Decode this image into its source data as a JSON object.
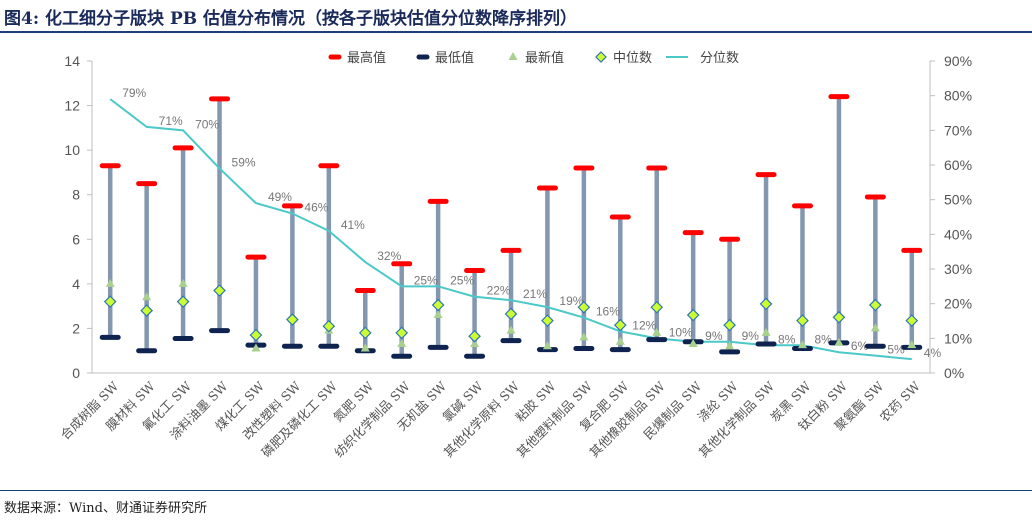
{
  "figure": {
    "title": "图4: 化工细分子版块 PB 估值分布情况（按各子版块估值分位数降序排列）",
    "source": "数据来源：Wind、财通证券研究所"
  },
  "chart_data": {
    "type": "line",
    "categories": [
      "合成树脂 SW",
      "膜材料 SW",
      "氟化工 SW",
      "涂料油墨 SW",
      "煤化工 SW",
      "改性塑料 SW",
      "磷肥及磷化工 SW",
      "氮肥 SW",
      "纺织化学制品 SW",
      "无机盐 SW",
      "氯碱 SW",
      "其他化学原料 SW",
      "粘胶 SW",
      "其他塑料制品 SW",
      "复合肥 SW",
      "其他橡胶制品 SW",
      "民爆制品 SW",
      "涤纶 SW",
      "其他化学制品 SW",
      "炭黑 SW",
      "钛白粉 SW",
      "聚氨酯 SW",
      "农药 SW"
    ],
    "y_left": {
      "min": 0,
      "max": 14,
      "ticks": [
        "0",
        "2",
        "4",
        "6",
        "8",
        "10",
        "12",
        "14"
      ]
    },
    "y_right": {
      "min": 0,
      "max": 90,
      "ticks": [
        "0%",
        "10%",
        "20%",
        "30%",
        "40%",
        "50%",
        "60%",
        "70%",
        "80%",
        "90%"
      ]
    },
    "series": [
      {
        "name": "最高值",
        "axis": "left",
        "color": "#ff0000",
        "values": [
          9.3,
          8.5,
          10.1,
          12.3,
          5.2,
          7.5,
          9.3,
          3.7,
          4.9,
          7.7,
          4.6,
          5.5,
          8.3,
          9.2,
          7.0,
          9.2,
          6.3,
          6.0,
          8.9,
          7.5,
          12.4,
          7.9,
          5.5
        ]
      },
      {
        "name": "最低值",
        "axis": "left",
        "color": "#0f2350",
        "values": [
          1.6,
          1.0,
          1.55,
          1.9,
          1.25,
          1.2,
          1.2,
          1.0,
          0.75,
          1.15,
          0.75,
          1.45,
          1.05,
          1.1,
          1.05,
          1.5,
          1.4,
          0.95,
          1.3,
          1.1,
          1.35,
          1.2,
          1.15
        ]
      },
      {
        "name": "最新值",
        "axis": "left",
        "color": "#a9d18e",
        "values": [
          4.0,
          3.4,
          4.0,
          3.8,
          1.1,
          2.4,
          1.9,
          1.1,
          1.3,
          2.6,
          1.3,
          1.9,
          1.2,
          1.6,
          1.4,
          1.8,
          1.3,
          1.2,
          1.8,
          1.25,
          1.35,
          2.0,
          1.25
        ]
      },
      {
        "name": "中位数",
        "axis": "left",
        "color": "#ccff33",
        "values": [
          3.2,
          2.8,
          3.2,
          3.7,
          1.7,
          2.4,
          2.1,
          1.8,
          1.8,
          3.05,
          1.65,
          2.65,
          2.35,
          2.95,
          2.15,
          2.95,
          2.6,
          2.15,
          3.1,
          2.35,
          2.5,
          3.05,
          2.35
        ]
      },
      {
        "name": "分位数",
        "axis": "right",
        "color": "#4bc8c8",
        "values": [
          79,
          71,
          70,
          59,
          49,
          46,
          41,
          32,
          25,
          25,
          22,
          21,
          19,
          16,
          12,
          10,
          9,
          9,
          8,
          8,
          6,
          5,
          4
        ],
        "labels": [
          "79%",
          "71%",
          "70%",
          "59%",
          "49%",
          "46%",
          "41%",
          "32%",
          "25%",
          "25%",
          "22%",
          "21%",
          "19%",
          "16%",
          "12%",
          "10%",
          "9%",
          "9%",
          "8%",
          "8%",
          "6%",
          "5%",
          "4%"
        ]
      }
    ],
    "legend_position": "top",
    "grid": false
  }
}
